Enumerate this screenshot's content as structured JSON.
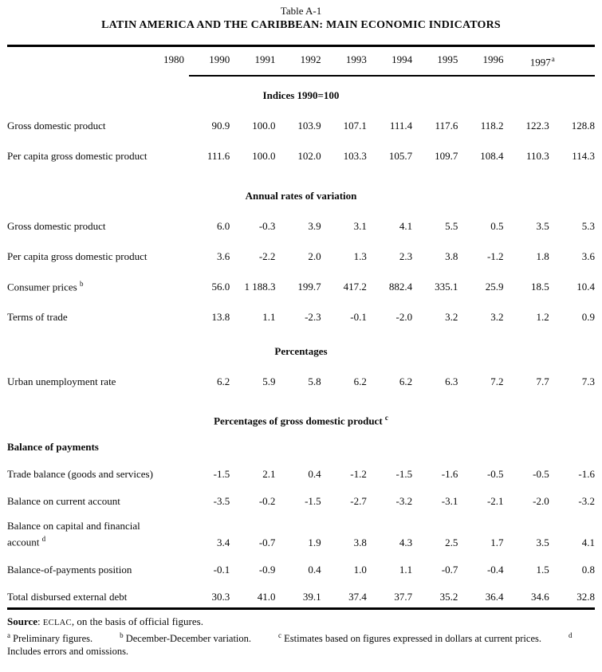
{
  "page": {
    "table_label": "Table A-1",
    "title": "LATIN AMERICA AND THE CARIBBEAN: MAIN ECONOMIC INDICATORS"
  },
  "columns": [
    {
      "label": "1980"
    },
    {
      "label": "1990"
    },
    {
      "label": "1991"
    },
    {
      "label": "1992"
    },
    {
      "label": "1993"
    },
    {
      "label": "1994"
    },
    {
      "label": "1995"
    },
    {
      "label": "1996"
    },
    {
      "label": "1997",
      "sup": "a"
    }
  ],
  "sections": [
    {
      "header": "Indices 1990=100",
      "rows": [
        {
          "label": "Gross domestic product",
          "values": [
            "90.9",
            "100.0",
            "103.9",
            "107.1",
            "111.4",
            "117.6",
            "118.2",
            "122.3",
            "128.8"
          ]
        },
        {
          "label": "Per capita gross domestic product",
          "values": [
            "111.6",
            "100.0",
            "102.0",
            "103.3",
            "105.7",
            "109.7",
            "108.4",
            "110.3",
            "114.3"
          ]
        }
      ]
    },
    {
      "header": "Annual rates of variation",
      "rows": [
        {
          "label": "Gross domestic product",
          "values": [
            "6.0",
            "-0.3",
            "3.9",
            "3.1",
            "4.1",
            "5.5",
            "0.5",
            "3.5",
            "5.3"
          ]
        },
        {
          "label": "Per capita gross domestic product",
          "values": [
            "3.6",
            "-2.2",
            "2.0",
            "1.3",
            "2.3",
            "3.8",
            "-1.2",
            "1.8",
            "3.6"
          ]
        },
        {
          "label": "Consumer prices",
          "sup": "b",
          "values": [
            "56.0",
            "1 188.3",
            "199.7",
            "417.2",
            "882.4",
            "335.1",
            "25.9",
            "18.5",
            "10.4"
          ]
        },
        {
          "label": "Terms of trade",
          "values": [
            "13.8",
            "1.1",
            "-2.3",
            "-0.1",
            "-2.0",
            "3.2",
            "3.2",
            "1.2",
            "0.9"
          ]
        }
      ]
    },
    {
      "header": "Percentages",
      "rows": [
        {
          "label": "Urban unemployment rate",
          "values": [
            "6.2",
            "5.9",
            "5.8",
            "6.2",
            "6.2",
            "6.3",
            "7.2",
            "7.7",
            "7.3"
          ]
        }
      ]
    },
    {
      "header": "Percentages of gross domestic product",
      "header_sup": "c",
      "subheader": "Balance of payments",
      "rows": [
        {
          "label": "Trade balance (goods and services)",
          "values": [
            "-1.5",
            "2.1",
            "0.4",
            "-1.2",
            "-1.5",
            "-1.6",
            "-0.5",
            "-0.5",
            "-1.6"
          ]
        },
        {
          "label": "Balance on current account",
          "values": [
            "-3.5",
            "-0.2",
            "-1.5",
            "-2.7",
            "-3.2",
            "-3.1",
            "-2.1",
            "-2.0",
            "-3.2"
          ]
        },
        {
          "label": "Balance on capital and financial account",
          "sup": "d",
          "wraps": true,
          "values": [
            "3.4",
            "-0.7",
            "1.9",
            "3.8",
            "4.3",
            "2.5",
            "1.7",
            "3.5",
            "4.1"
          ]
        },
        {
          "label": "Balance-of-payments position",
          "values": [
            "-0.1",
            "-0.9",
            "0.4",
            "1.0",
            "1.1",
            "-0.7",
            "-0.4",
            "1.5",
            "0.8"
          ]
        },
        {
          "label": "Total disbursed external debt",
          "values": [
            "30.3",
            "41.0",
            "39.1",
            "37.4",
            "37.7",
            "35.2",
            "36.4",
            "34.6",
            "32.8"
          ]
        }
      ]
    }
  ],
  "footer": {
    "source_label": "Source",
    "source_sep": ": ",
    "source_org": "ECLAC",
    "source_rest": ", on the basis of official figures.",
    "footnotes": [
      {
        "sup": "a",
        "text": "Preliminary figures."
      },
      {
        "sup": "b",
        "text": "December-December variation."
      },
      {
        "sup": "c",
        "text": "Estimates based on figures expressed in dollars at current prices."
      },
      {
        "sup": "d",
        "text": "Includes errors and omissions."
      }
    ]
  }
}
